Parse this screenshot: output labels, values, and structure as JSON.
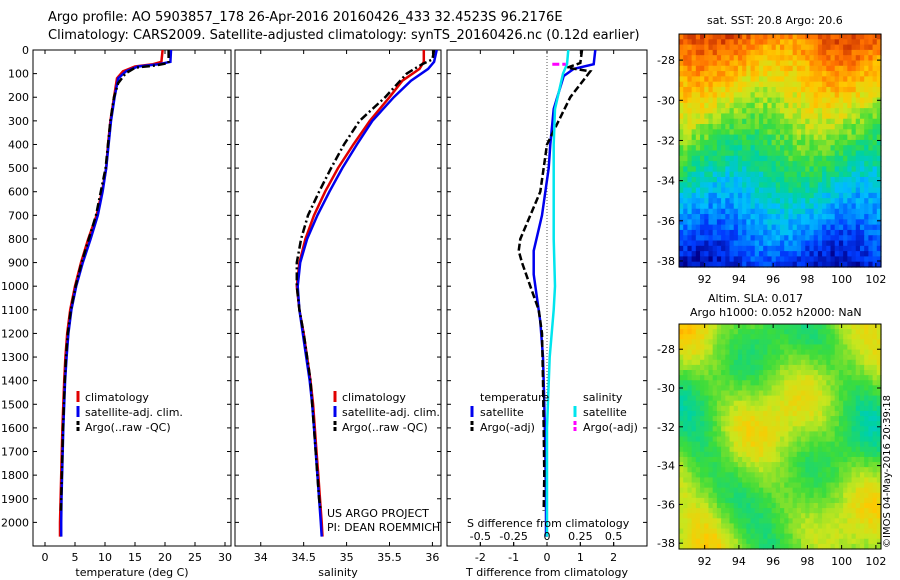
{
  "header": {
    "line1": "Argo profile: AO 5903857_178 26-Apr-2016 20160426_433 32.4523S 96.2176E",
    "line2": "Climatology: CARS2009. Satellite-adjusted climatology: synTS_20160426.nc (0.12d earlier)"
  },
  "credits": {
    "project": "US ARGO PROJECT",
    "pi": "PI: DEAN ROEMMICH",
    "stamp": "©IMOS 04-May-2016 20:39:18"
  },
  "colors": {
    "climatology": "#e00000",
    "satellite": "#0000ee",
    "argo": "#000000",
    "satellite_s": "#00e5ee",
    "argo_s": "#ff00ff"
  },
  "chart_data": [
    {
      "type": "line",
      "id": "temperature",
      "xlabel": "temperature (deg C)",
      "ylabel": "",
      "xlim": [
        -2,
        31
      ],
      "ylim": [
        2100,
        0
      ],
      "xticks": [
        0,
        5,
        10,
        15,
        20,
        25,
        30
      ],
      "yticks": [
        0,
        100,
        200,
        300,
        400,
        500,
        600,
        700,
        800,
        900,
        1000,
        1100,
        1200,
        1300,
        1400,
        1500,
        1600,
        1700,
        1800,
        1900,
        2000
      ],
      "legend": [
        "climatology",
        "satellite-adj. clim.",
        "Argo(..raw -QC)"
      ],
      "series": [
        {
          "name": "climatology",
          "style": "solid",
          "color": "#e00000",
          "points": [
            [
              19.6,
              0
            ],
            [
              19.4,
              50
            ],
            [
              18,
              60
            ],
            [
              15,
              70
            ],
            [
              13,
              90
            ],
            [
              12,
              120
            ],
            [
              11.5,
              200
            ],
            [
              10.9,
              300
            ],
            [
              10.5,
              400
            ],
            [
              10.2,
              500
            ],
            [
              9.5,
              600
            ],
            [
              8.6,
              700
            ],
            [
              7.2,
              800
            ],
            [
              6,
              900
            ],
            [
              5,
              1000
            ],
            [
              4.2,
              1100
            ],
            [
              3.7,
              1200
            ],
            [
              3.4,
              1300
            ],
            [
              3.2,
              1400
            ],
            [
              3.05,
              1500
            ],
            [
              2.9,
              1600
            ],
            [
              2.8,
              1700
            ],
            [
              2.7,
              1800
            ],
            [
              2.6,
              1900
            ],
            [
              2.5,
              2000
            ],
            [
              2.5,
              2060
            ]
          ]
        },
        {
          "name": "satellite-adj. clim.",
          "style": "solid",
          "color": "#0000ee",
          "points": [
            [
              21,
              0
            ],
            [
              20.9,
              50
            ],
            [
              19,
              60
            ],
            [
              15.5,
              70
            ],
            [
              13.5,
              90
            ],
            [
              12.2,
              120
            ],
            [
              11.6,
              200
            ],
            [
              11,
              300
            ],
            [
              10.6,
              400
            ],
            [
              10.2,
              500
            ],
            [
              9.6,
              600
            ],
            [
              8.8,
              700
            ],
            [
              7.6,
              800
            ],
            [
              6.3,
              900
            ],
            [
              5.2,
              1000
            ],
            [
              4.4,
              1100
            ],
            [
              3.9,
              1200
            ],
            [
              3.6,
              1300
            ],
            [
              3.35,
              1400
            ],
            [
              3.2,
              1500
            ],
            [
              3.05,
              1600
            ],
            [
              2.95,
              1700
            ],
            [
              2.85,
              1800
            ],
            [
              2.75,
              1900
            ],
            [
              2.7,
              2000
            ],
            [
              2.7,
              2060
            ]
          ]
        },
        {
          "name": "Argo(..raw -QC)",
          "style": "dashdot",
          "color": "#000000",
          "points": [
            [
              20.6,
              0
            ],
            [
              20.6,
              55
            ],
            [
              18.5,
              65
            ],
            [
              15,
              75
            ],
            [
              13.4,
              100
            ],
            [
              12.2,
              140
            ],
            [
              11.5,
              200
            ],
            [
              10.9,
              300
            ],
            [
              10.5,
              400
            ],
            [
              10.1,
              500
            ],
            [
              9.3,
              600
            ],
            [
              8.5,
              700
            ],
            [
              7.3,
              800
            ],
            [
              6.1,
              900
            ],
            [
              5.1,
              1000
            ],
            [
              4.3,
              1100
            ],
            [
              3.8,
              1200
            ],
            [
              3.5,
              1300
            ],
            [
              3.3,
              1400
            ],
            [
              3.15,
              1500
            ],
            [
              3,
              1600
            ],
            [
              2.9,
              1700
            ],
            [
              2.8,
              1800
            ],
            [
              2.7,
              1900
            ],
            [
              2.65,
              1950
            ]
          ]
        }
      ]
    },
    {
      "type": "line",
      "id": "salinity",
      "xlabel": "salinity",
      "ylabel": "",
      "xlim": [
        33.7,
        36.1
      ],
      "ylim": [
        2100,
        0
      ],
      "xticks": [
        34,
        34.5,
        35,
        35.5,
        36
      ],
      "legend": [
        "climatology",
        "satellite-adj. clim.",
        "Argo(..raw -QC)"
      ],
      "series": [
        {
          "name": "climatology",
          "style": "solid",
          "color": "#e00000",
          "points": [
            [
              35.9,
              0
            ],
            [
              35.9,
              50
            ],
            [
              35.85,
              80
            ],
            [
              35.65,
              130
            ],
            [
              35.5,
              200
            ],
            [
              35.27,
              300
            ],
            [
              35.08,
              400
            ],
            [
              34.9,
              500
            ],
            [
              34.75,
              600
            ],
            [
              34.62,
              700
            ],
            [
              34.52,
              800
            ],
            [
              34.45,
              900
            ],
            [
              34.42,
              1000
            ],
            [
              34.45,
              1100
            ],
            [
              34.5,
              1200
            ],
            [
              34.54,
              1300
            ],
            [
              34.58,
              1400
            ],
            [
              34.61,
              1500
            ],
            [
              34.63,
              1600
            ],
            [
              34.65,
              1700
            ],
            [
              34.67,
              1800
            ],
            [
              34.69,
              1900
            ],
            [
              34.71,
              2000
            ],
            [
              34.72,
              2060
            ]
          ]
        },
        {
          "name": "satellite-adj. clim.",
          "style": "solid",
          "color": "#0000ee",
          "points": [
            [
              36.05,
              0
            ],
            [
              36.02,
              50
            ],
            [
              35.95,
              80
            ],
            [
              35.75,
              130
            ],
            [
              35.55,
              200
            ],
            [
              35.3,
              300
            ],
            [
              35.12,
              400
            ],
            [
              34.95,
              500
            ],
            [
              34.8,
              600
            ],
            [
              34.66,
              700
            ],
            [
              34.54,
              800
            ],
            [
              34.46,
              900
            ],
            [
              34.43,
              1000
            ],
            [
              34.45,
              1100
            ],
            [
              34.49,
              1200
            ],
            [
              34.53,
              1300
            ],
            [
              34.57,
              1400
            ],
            [
              34.6,
              1500
            ],
            [
              34.62,
              1600
            ],
            [
              34.64,
              1700
            ],
            [
              34.66,
              1800
            ],
            [
              34.68,
              1900
            ],
            [
              34.7,
              2000
            ],
            [
              34.71,
              2060
            ]
          ]
        },
        {
          "name": "Argo(..raw -QC)",
          "style": "dashdot",
          "color": "#000000",
          "points": [
            [
              36.02,
              0
            ],
            [
              36,
              40
            ],
            [
              35.88,
              60
            ],
            [
              35.7,
              100
            ],
            [
              35.45,
              200
            ],
            [
              35.15,
              300
            ],
            [
              34.97,
              400
            ],
            [
              34.82,
              500
            ],
            [
              34.68,
              600
            ],
            [
              34.55,
              700
            ],
            [
              34.47,
              800
            ],
            [
              34.42,
              900
            ],
            [
              34.42,
              1000
            ],
            [
              34.45,
              1100
            ],
            [
              34.5,
              1200
            ],
            [
              34.54,
              1300
            ],
            [
              34.58,
              1400
            ],
            [
              34.6,
              1500
            ],
            [
              34.62,
              1600
            ],
            [
              34.64,
              1700
            ],
            [
              34.66,
              1800
            ],
            [
              34.68,
              1900
            ],
            [
              34.7,
              1950
            ]
          ]
        }
      ]
    },
    {
      "type": "line",
      "id": "difference",
      "xlabel": "T difference from climatology",
      "xlabel2": "S difference from climatology",
      "ylabel": "",
      "xlim": [
        -3,
        3
      ],
      "ylim": [
        2100,
        0
      ],
      "xticks": [
        -2,
        -1,
        0,
        1,
        2
      ],
      "xticks2": [
        -0.5,
        -0.25,
        0,
        0.25,
        0.5
      ],
      "xticklabels2": [
        "-0.5",
        "-0.25",
        "0",
        "0.25",
        "0.5"
      ],
      "legend_titles": [
        "temperature",
        "salinity"
      ],
      "legend": [
        "satellite",
        "Argo(-adj)",
        "satellite",
        "Argo(-adj)"
      ],
      "series": [
        {
          "name": "satellite",
          "variable": "temperature",
          "style": "solid",
          "color": "#0000ee",
          "points": [
            [
              1.45,
              0
            ],
            [
              1.4,
              60
            ],
            [
              0.8,
              80
            ],
            [
              0.5,
              110
            ],
            [
              0.2,
              250
            ],
            [
              0.1,
              400
            ],
            [
              0.05,
              500
            ],
            [
              -0.15,
              700
            ],
            [
              -0.4,
              850
            ],
            [
              -0.4,
              950
            ],
            [
              -0.3,
              1050
            ],
            [
              -0.2,
              1150
            ],
            [
              -0.12,
              1300
            ],
            [
              -0.08,
              1500
            ],
            [
              -0.05,
              1700
            ],
            [
              -0.03,
              1900
            ],
            [
              -0.03,
              2060
            ]
          ]
        },
        {
          "name": "Argo(-adj)",
          "variable": "temperature",
          "style": "dashed",
          "color": "#000000",
          "points": [
            [
              1.05,
              0
            ],
            [
              1.0,
              55
            ],
            [
              0.6,
              75
            ],
            [
              1.3,
              90
            ],
            [
              0.7,
              200
            ],
            [
              0.0,
              400
            ],
            [
              -0.2,
              600
            ],
            [
              -0.8,
              800
            ],
            [
              -0.85,
              850
            ],
            [
              -0.75,
              900
            ],
            [
              -0.5,
              1000
            ],
            [
              -0.25,
              1100
            ],
            [
              -0.15,
              1200
            ],
            [
              -0.12,
              1400
            ],
            [
              -0.1,
              1600
            ],
            [
              -0.08,
              1800
            ],
            [
              -0.1,
              1950
            ]
          ]
        },
        {
          "name": "satellite",
          "variable": "salinity",
          "style": "solid",
          "color": "#00e5ee",
          "points": [
            [
              0.16,
              0
            ],
            [
              0.15,
              60
            ],
            [
              0.12,
              100
            ],
            [
              0.06,
              250
            ],
            [
              0.05,
              400
            ],
            [
              0.05,
              600
            ],
            [
              0.05,
              800
            ],
            [
              0.06,
              1000
            ],
            [
              0.05,
              1100
            ],
            [
              0.02,
              1300
            ],
            [
              0.0,
              1600
            ],
            [
              0.0,
              2060
            ]
          ]
        },
        {
          "name": "Argo(-adj)",
          "variable": "salinity",
          "style": "dashed",
          "color": "#ff00ff",
          "points": [
            [
              0.04,
              60
            ],
            [
              0.14,
              60
            ]
          ]
        }
      ]
    },
    {
      "type": "heatmap",
      "id": "sst-map",
      "title": "sat. SST: 20.8 Argo: 20.6",
      "xlim": [
        90.5,
        102.3
      ],
      "ylim": [
        -38.3,
        -26.7
      ],
      "xticks": [
        92,
        94,
        96,
        98,
        100,
        102
      ],
      "yticks": [
        -28,
        -30,
        -32,
        -34,
        -36,
        -38
      ]
    },
    {
      "type": "heatmap",
      "id": "sla-map",
      "title_line1": "Altim. SLA: 0.017",
      "title_line2": "Argo h1000: 0.052 h2000: NaN",
      "xlim": [
        90.5,
        102.3
      ],
      "ylim": [
        -38.3,
        -26.7
      ],
      "xticks": [
        92,
        94,
        96,
        98,
        100,
        102
      ],
      "yticks": [
        -28,
        -30,
        -32,
        -34,
        -36,
        -38
      ]
    }
  ]
}
